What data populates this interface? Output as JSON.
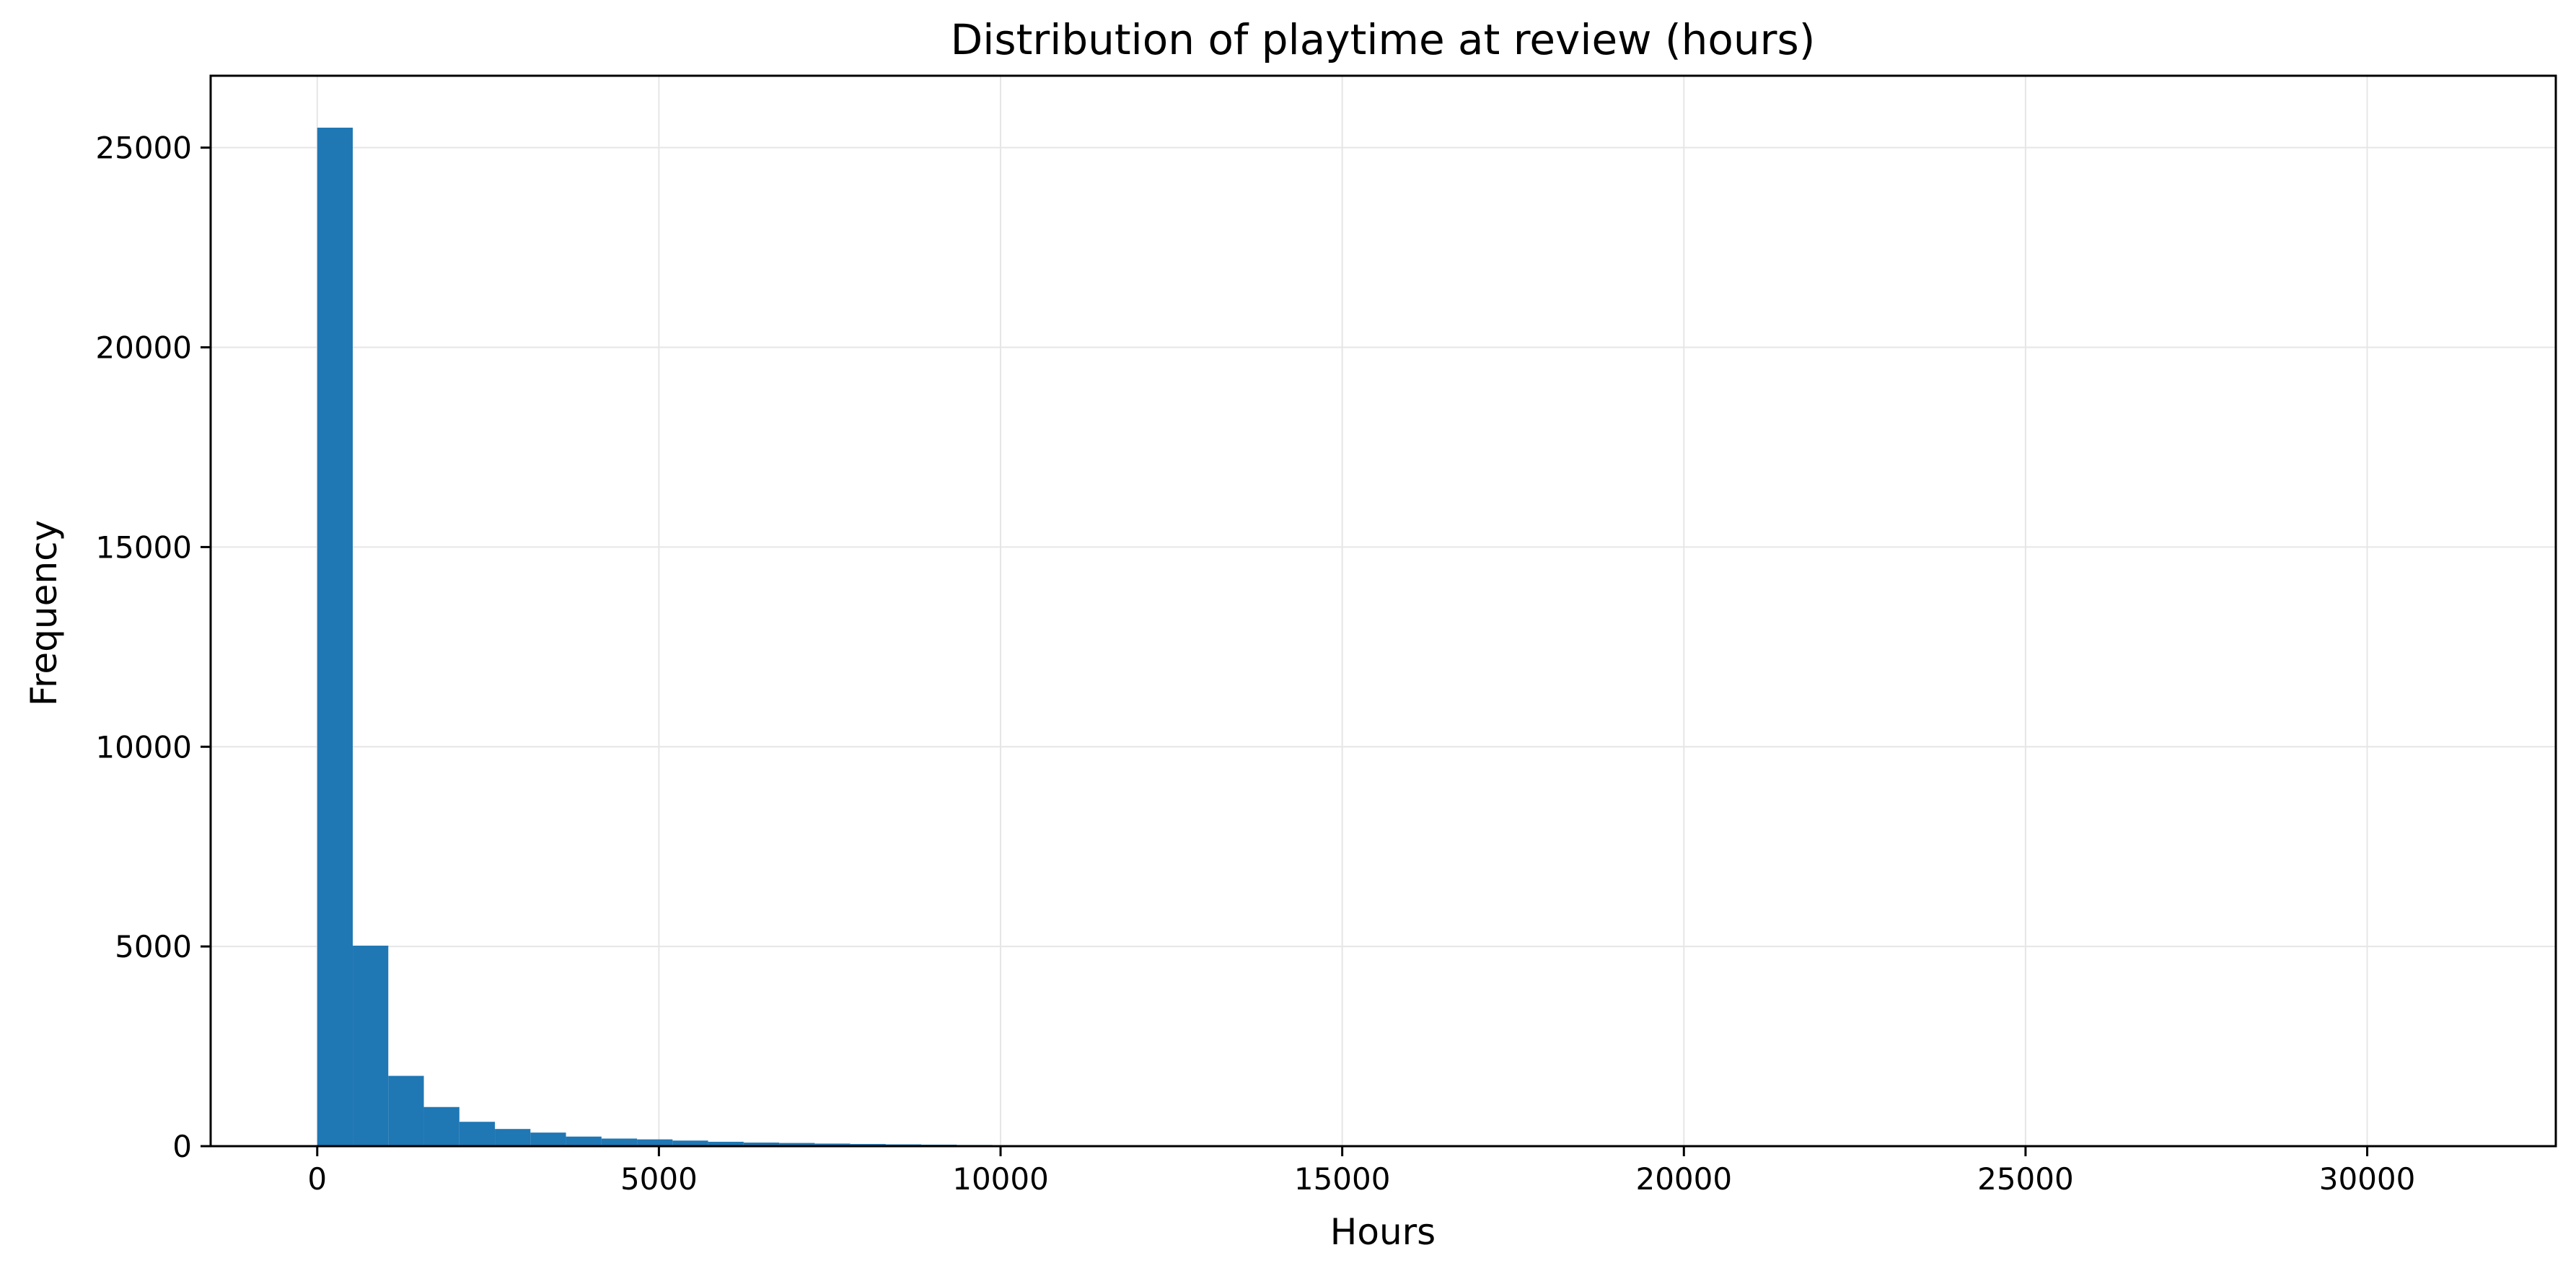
{
  "chart_data": {
    "type": "bar",
    "title": "Distribution of playtime at review (hours)",
    "xlabel": "Hours",
    "ylabel": "Frequency",
    "xlim": [
      -1560,
      32760
    ],
    "ylim": [
      0,
      26800
    ],
    "xticks": [
      0,
      5000,
      10000,
      15000,
      20000,
      25000,
      30000
    ],
    "yticks": [
      0,
      5000,
      10000,
      15000,
      20000,
      25000
    ],
    "grid": true,
    "bar_color": "#1f77b4",
    "bin_width": 520,
    "bin_start": 0,
    "values": [
      25500,
      5020,
      1760,
      980,
      610,
      430,
      340,
      240,
      190,
      170,
      140,
      110,
      90,
      80,
      65,
      55,
      45,
      38,
      30,
      25,
      20,
      18,
      15,
      12,
      10,
      8,
      7,
      6,
      5,
      4,
      3,
      3,
      2,
      2,
      2,
      1,
      1,
      1,
      1,
      1,
      1,
      1,
      0,
      0,
      1,
      0,
      0,
      0,
      0,
      0,
      0,
      0,
      0,
      0,
      0,
      0,
      0,
      0,
      0,
      1
    ]
  }
}
